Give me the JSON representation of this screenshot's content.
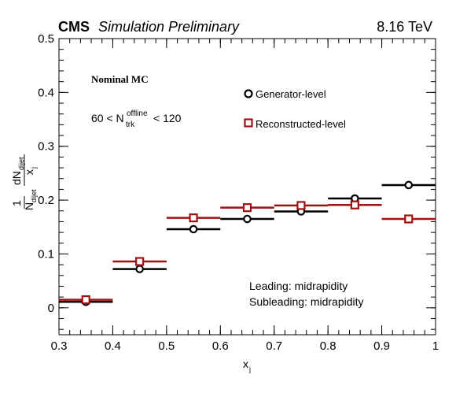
{
  "header": {
    "experiment": "CMS",
    "status": "Simulation Preliminary",
    "energy": "8.16 TeV"
  },
  "annotations": {
    "sample": "Nominal MC",
    "ntrk_lower": "60",
    "ntrk_symbol": "N",
    "ntrk_subscript": "trk",
    "ntrk_superscript": "offline",
    "ntrk_upper": "120",
    "leading": "Leading: midrapidity",
    "subleading": "Subleading: midrapidity"
  },
  "chart_data": {
    "type": "scatter",
    "xlabel_main": "x",
    "xlabel_sub": "j",
    "ylabel": {
      "one": "1",
      "N": "N",
      "N_sub": "dijet",
      "dN": "dN",
      "dN_sub": "dijet",
      "dx": "x",
      "dx_sub": "j"
    },
    "xlim": [
      0.3,
      1.0
    ],
    "ylim": [
      -0.05,
      0.5
    ],
    "x_ticks": [
      "0.3",
      "0.4",
      "0.5",
      "0.6",
      "0.7",
      "0.8",
      "0.9",
      "1"
    ],
    "y_ticks": [
      "0",
      "0.1",
      "0.2",
      "0.3",
      "0.4",
      "0.5"
    ],
    "bin_edges": [
      0.3,
      0.4,
      0.5,
      0.6,
      0.7,
      0.8,
      0.9,
      1.0
    ],
    "series": [
      {
        "name": "Generator-level",
        "marker": "circle",
        "color": "#000000",
        "values": [
          0.011,
          0.072,
          0.146,
          0.165,
          0.179,
          0.203,
          0.228
        ]
      },
      {
        "name": "Reconstructed-level",
        "marker": "square",
        "color": "#a01010",
        "values": [
          0.015,
          0.086,
          0.167,
          0.186,
          0.19,
          0.191,
          0.165
        ]
      }
    ]
  }
}
